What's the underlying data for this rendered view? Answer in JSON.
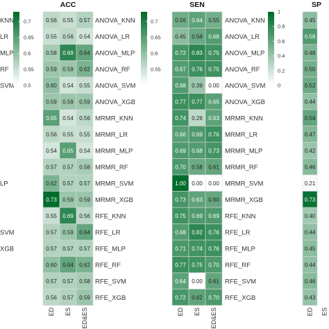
{
  "colors": {
    "low": "#ffffff",
    "high": "#006d2c",
    "cell_border": "#d9d9d9",
    "text_dark": "#222222",
    "text_light": "#ffffff"
  },
  "chart_data": {
    "type": "heatmap",
    "rows": [
      "ANOVA_KNN",
      "ANOVA_LR",
      "ANOVA_MLP",
      "ANOVA_RF",
      "ANOVA_SVM",
      "ANOVA_XGB",
      "MRMR_KNN",
      "MRMR_LR",
      "MRMR_MLP",
      "MRMR_RF",
      "MRMR_SVM",
      "MRMR_XGB",
      "RFE_KNN",
      "RFE_LR",
      "RFE_MLP",
      "RFE_RF",
      "RFE_SVM",
      "RFE_XGB"
    ],
    "columns": [
      "ED",
      "ES",
      "ED&ES"
    ],
    "panels": [
      {
        "title": "",
        "columns_visible": [],
        "colorbar": {
          "min": 0.5,
          "max": 0.73,
          "ticks": [
            0.7,
            0.65,
            0.6,
            0.55,
            0.5
          ]
        },
        "values": [],
        "left_labels": [
          "KNN",
          "LR",
          "MLP",
          "RF",
          "SVM",
          "",
          "",
          "",
          "",
          "",
          "LP",
          "",
          "",
          "SVM",
          "XGB"
        ]
      },
      {
        "title": "ACC",
        "colorbar": {
          "min": 0.5,
          "max": 0.73,
          "ticks": [
            0.7,
            0.65,
            0.6,
            0.55
          ]
        },
        "values": [
          [
            0.56,
            0.55,
            0.57
          ],
          [
            0.55,
            0.56,
            0.54
          ],
          [
            0.58,
            0.69,
            0.64
          ],
          [
            0.59,
            0.59,
            0.62
          ],
          [
            0.6,
            0.54,
            0.55
          ],
          [
            0.59,
            0.59,
            0.59
          ],
          [
            0.65,
            0.54,
            0.56
          ],
          [
            0.56,
            0.55,
            0.55
          ],
          [
            0.54,
            0.65,
            0.54
          ],
          [
            0.57,
            0.57,
            0.58
          ],
          [
            0.62,
            0.57,
            0.57
          ],
          [
            0.73,
            0.59,
            0.59
          ],
          [
            0.55,
            0.69,
            0.56
          ],
          [
            0.57,
            0.59,
            0.64
          ],
          [
            0.57,
            0.57,
            0.57
          ],
          [
            0.6,
            0.64,
            0.62
          ],
          [
            0.57,
            0.57,
            0.58
          ],
          [
            0.56,
            0.57,
            0.59
          ]
        ]
      },
      {
        "title": "SEN",
        "colorbar": {
          "min": 0,
          "max": 1,
          "ticks": [
            1,
            0.8,
            0.6,
            0.4,
            0.2,
            0
          ]
        },
        "values": [
          [
            0.56,
            0.64,
            0.55
          ],
          [
            0.45,
            0.58,
            0.68
          ],
          [
            0.72,
            0.83,
            0.75
          ],
          [
            0.67,
            0.76,
            0.75
          ],
          [
            0.68,
            0.39,
            0.0
          ],
          [
            0.77,
            0.77,
            0.65
          ],
          [
            0.74,
            0.26,
            0.63
          ],
          [
            0.66,
            0.69,
            0.76
          ],
          [
            0.69,
            0.68,
            0.73
          ],
          [
            0.7,
            0.58,
            0.61
          ],
          [
            1.0,
            0.0,
            0.0
          ],
          [
            0.73,
            0.63,
            0.6
          ],
          [
            0.75,
            0.69,
            0.69
          ],
          [
            0.68,
            0.82,
            0.76
          ],
          [
            0.71,
            0.74,
            0.76
          ],
          [
            0.77,
            0.75,
            0.7
          ],
          [
            0.64,
            0.0,
            0.61
          ],
          [
            0.72,
            0.62,
            0.7
          ]
        ]
      },
      {
        "title": "SP",
        "values": [
          [
            0.45
          ],
          [
            0.58
          ],
          [
            0.48
          ],
          [
            0.5
          ],
          [
            0.52
          ],
          [
            0.44
          ],
          [
            0.54
          ],
          [
            0.47
          ],
          [
            0.42
          ],
          [
            0.46
          ],
          [
            0.21
          ],
          [
            0.73
          ],
          [
            0.4
          ],
          [
            0.44
          ],
          [
            0.45
          ],
          [
            0.44
          ],
          [
            0.46
          ],
          [
            0.43
          ]
        ]
      }
    ]
  }
}
